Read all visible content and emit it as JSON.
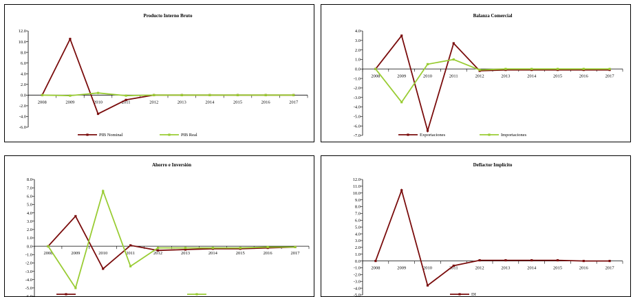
{
  "chart_data": [
    {
      "type": "line",
      "title": "Producto Interno Bruto",
      "categories": [
        "2008",
        "2009",
        "2010",
        "2011",
        "2012",
        "2013",
        "2014",
        "2015",
        "2016",
        "2017"
      ],
      "ylim": [
        -6,
        12
      ],
      "ystep": 2,
      "ydecimals": 1,
      "grid": false,
      "legend": "bottom",
      "series": [
        {
          "name": "PIB Nominal",
          "color": "#7a0c0c",
          "values": [
            0.0,
            10.5,
            -3.5,
            -0.9,
            0.0,
            0.0,
            0.0,
            0.0,
            0.0,
            0.0
          ]
        },
        {
          "name": "PIB Real",
          "color": "#99cc33",
          "values": [
            0.0,
            -0.1,
            0.4,
            -0.1,
            0.0,
            0.0,
            0.0,
            0.0,
            0.0,
            0.0
          ]
        }
      ]
    },
    {
      "type": "line",
      "title": "Balanza Comercial",
      "categories": [
        "2008",
        "2009",
        "2010",
        "2011",
        "2012",
        "2013",
        "2014",
        "2015",
        "2016",
        "2017"
      ],
      "ylim": [
        -7,
        4
      ],
      "ystep": 1,
      "ydecimals": 1,
      "grid": false,
      "legend": "bottom",
      "series": [
        {
          "name": "Exportaciones",
          "color": "#7a0c0c",
          "values": [
            0.0,
            3.5,
            -6.5,
            2.7,
            -0.2,
            -0.1,
            -0.1,
            -0.1,
            -0.1,
            -0.1
          ]
        },
        {
          "name": "Importaciones",
          "color": "#99cc33",
          "values": [
            0.0,
            -3.5,
            0.5,
            1.0,
            -0.1,
            0.0,
            0.0,
            0.0,
            0.0,
            0.0
          ]
        }
      ]
    },
    {
      "type": "line",
      "title": "Ahorro e Inversión",
      "categories": [
        "2008",
        "2009",
        "2010",
        "2011",
        "2012",
        "2013",
        "2014",
        "2015",
        "2016",
        "2017"
      ],
      "ylim": [
        -6,
        8
      ],
      "ystep": 1,
      "ydecimals": 1,
      "grid": false,
      "legend": "bottom",
      "series": [
        {
          "name": "",
          "color": "#7a0c0c",
          "values": [
            0.0,
            3.6,
            -2.7,
            0.1,
            -0.5,
            -0.4,
            -0.3,
            -0.3,
            -0.2,
            -0.1
          ]
        },
        {
          "name": "",
          "color": "#99cc33",
          "values": [
            0.0,
            -5.0,
            6.6,
            -2.4,
            -0.2,
            -0.2,
            -0.2,
            -0.2,
            -0.1,
            -0.1
          ]
        }
      ]
    },
    {
      "type": "line",
      "title": "Deflactor Implícito",
      "categories": [
        "2008",
        "2009",
        "2010",
        "2011",
        "2012",
        "2013",
        "2014",
        "2015",
        "2016",
        "2017"
      ],
      "ylim": [
        -5,
        12
      ],
      "ystep": 1,
      "ydecimals": 1,
      "grid": false,
      "legend": "bottom",
      "series": [
        {
          "name": "DI",
          "color": "#7a0c0c",
          "values": [
            0.0,
            10.4,
            -3.6,
            -0.7,
            0.1,
            0.1,
            0.1,
            0.1,
            0.0,
            0.0
          ]
        }
      ]
    }
  ]
}
